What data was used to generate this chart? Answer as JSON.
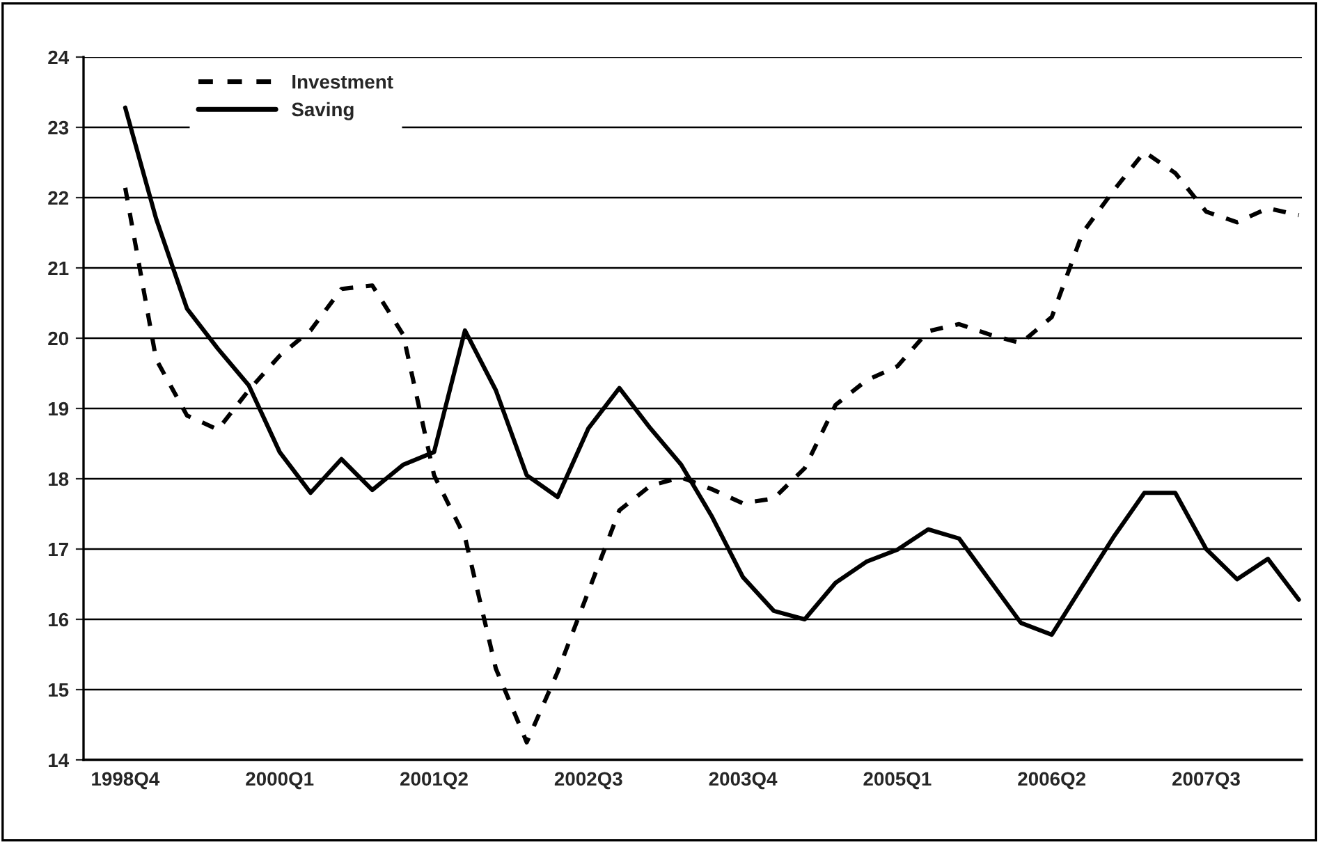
{
  "chart_data": {
    "type": "line",
    "categories": [
      "1998Q4",
      null,
      null,
      null,
      null,
      "2000Q1",
      null,
      null,
      null,
      null,
      "2001Q2",
      null,
      null,
      null,
      null,
      "2002Q3",
      null,
      null,
      null,
      null,
      "2003Q4",
      null,
      null,
      null,
      null,
      "2005Q1",
      null,
      null,
      null,
      null,
      "2006Q2",
      null,
      null,
      null,
      null,
      "2007Q3",
      null,
      null,
      null
    ],
    "series": [
      {
        "name": "Investment",
        "color": "#000000",
        "line_style": "dashed",
        "values": [
          22.14,
          19.7,
          18.9,
          18.7,
          19.26,
          19.75,
          20.11,
          20.7,
          20.75,
          20.05,
          18.05,
          17.17,
          15.3,
          14.25,
          15.25,
          16.4,
          17.55,
          17.9,
          18.02,
          17.85,
          17.65,
          17.72,
          18.15,
          19.05,
          19.4,
          19.6,
          20.1,
          20.2,
          20.05,
          19.93,
          20.3,
          21.5,
          22.1,
          22.65,
          22.35,
          21.8,
          21.65,
          21.85,
          21.75
        ]
      },
      {
        "name": "Saving",
        "color": "#000000",
        "line_style": "solid",
        "values": [
          23.28,
          21.7,
          20.42,
          19.85,
          19.33,
          18.38,
          17.8,
          18.28,
          17.84,
          18.2,
          18.38,
          20.11,
          19.26,
          18.05,
          17.74,
          18.72,
          19.29,
          18.72,
          18.2,
          17.46,
          16.6,
          16.12,
          16.0,
          16.52,
          16.82,
          16.99,
          17.28,
          17.15,
          16.55,
          15.95,
          15.78,
          16.48,
          17.17,
          17.8,
          17.8,
          17.0,
          16.57,
          16.86,
          16.28
        ]
      }
    ],
    "ylim": [
      14,
      24
    ],
    "yticks": [
      14,
      15,
      16,
      17,
      18,
      19,
      20,
      21,
      22,
      23,
      24
    ],
    "grid": "y",
    "legend": "top left",
    "marker": "none"
  }
}
